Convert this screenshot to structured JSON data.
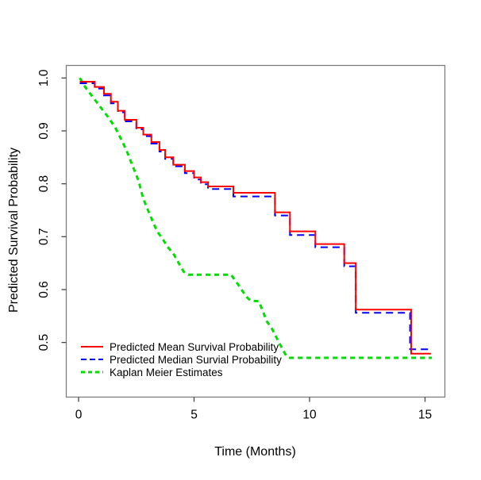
{
  "figure": {
    "background": "#ffffff",
    "box_color": "#7d7d7d",
    "tick_color": "#454545",
    "text_color": "#000000"
  },
  "chart_data": {
    "type": "line",
    "title": "",
    "xlabel": "Time (Months)",
    "ylabel": "Predicted Survival Probability",
    "xlim": [
      -0.55,
      15.85
    ],
    "ylim": [
      0.397,
      1.024
    ],
    "grid": false,
    "x_ticks": {
      "values": [
        0,
        5,
        10,
        15
      ],
      "labels": [
        "0",
        "5",
        "10",
        "15"
      ]
    },
    "y_ticks": {
      "values": [
        1.0,
        0.9,
        0.8,
        0.7,
        0.6,
        0.5
      ],
      "labels": [
        "1.0",
        "0.9",
        "0.8",
        "0.7",
        "0.6",
        "0.5"
      ]
    },
    "legend": {
      "position": "bottom-left-inside"
    },
    "series": [
      {
        "id": "kaplan-meier-line",
        "name": "Kaplan Meier Estimates",
        "color": "#00dd00",
        "line_style": "dashed",
        "dash": "6 5",
        "width": 3,
        "curve": "linear",
        "points": [
          [
            0.05,
            1.0
          ],
          [
            0.3,
            0.982
          ],
          [
            0.65,
            0.962
          ],
          [
            0.95,
            0.945
          ],
          [
            1.3,
            0.925
          ],
          [
            1.6,
            0.905
          ],
          [
            1.8,
            0.888
          ],
          [
            2.0,
            0.87
          ],
          [
            2.15,
            0.855
          ],
          [
            2.3,
            0.838
          ],
          [
            2.45,
            0.822
          ],
          [
            2.6,
            0.805
          ],
          [
            2.7,
            0.788
          ],
          [
            2.8,
            0.772
          ],
          [
            2.95,
            0.756
          ],
          [
            3.1,
            0.74
          ],
          [
            3.25,
            0.725
          ],
          [
            3.4,
            0.71
          ],
          [
            3.65,
            0.695
          ],
          [
            3.85,
            0.681
          ],
          [
            4.1,
            0.668
          ],
          [
            4.25,
            0.657
          ],
          [
            4.4,
            0.645
          ],
          [
            4.55,
            0.634
          ],
          [
            4.75,
            0.628
          ],
          [
            6.6,
            0.628
          ],
          [
            6.9,
            0.61
          ],
          [
            7.1,
            0.597
          ],
          [
            7.3,
            0.585
          ],
          [
            7.45,
            0.579
          ],
          [
            7.8,
            0.578
          ],
          [
            7.95,
            0.562
          ],
          [
            8.15,
            0.54
          ],
          [
            8.4,
            0.524
          ],
          [
            8.65,
            0.502
          ],
          [
            8.85,
            0.486
          ],
          [
            9.0,
            0.474
          ],
          [
            9.15,
            0.471
          ],
          [
            15.3,
            0.471
          ]
        ]
      },
      {
        "id": "median-survival-line",
        "name": "Predicted Median Survial Probability",
        "color": "#0000ff",
        "line_style": "dashed",
        "dash": "9 6",
        "width": 2,
        "curve": "step",
        "points": [
          [
            0.05,
            0.99
          ],
          [
            0.7,
            0.98
          ],
          [
            1.1,
            0.967
          ],
          [
            1.4,
            0.952
          ],
          [
            1.7,
            0.935
          ],
          [
            2.0,
            0.918
          ],
          [
            2.5,
            0.903
          ],
          [
            2.8,
            0.89
          ],
          [
            3.15,
            0.876
          ],
          [
            3.5,
            0.861
          ],
          [
            3.75,
            0.847
          ],
          [
            4.1,
            0.833
          ],
          [
            4.6,
            0.82
          ],
          [
            5.0,
            0.808
          ],
          [
            5.3,
            0.799
          ],
          [
            5.6,
            0.79
          ],
          [
            6.7,
            0.776
          ],
          [
            8.5,
            0.74
          ],
          [
            9.15,
            0.703
          ],
          [
            10.25,
            0.68
          ],
          [
            11.5,
            0.644
          ],
          [
            12.0,
            0.556
          ],
          [
            14.35,
            0.487
          ],
          [
            15.3,
            0.487
          ]
        ]
      },
      {
        "id": "mean-survival-line",
        "name": "Predicted Mean Survival Probability",
        "color": "#ff0000",
        "line_style": "solid",
        "dash": "",
        "width": 2,
        "curve": "step",
        "points": [
          [
            0.05,
            0.993
          ],
          [
            0.7,
            0.983
          ],
          [
            1.1,
            0.97
          ],
          [
            1.4,
            0.955
          ],
          [
            1.7,
            0.938
          ],
          [
            2.0,
            0.921
          ],
          [
            2.5,
            0.906
          ],
          [
            2.8,
            0.893
          ],
          [
            3.15,
            0.879
          ],
          [
            3.5,
            0.864
          ],
          [
            3.75,
            0.85
          ],
          [
            4.1,
            0.836
          ],
          [
            4.6,
            0.824
          ],
          [
            5.0,
            0.812
          ],
          [
            5.3,
            0.803
          ],
          [
            5.6,
            0.795
          ],
          [
            6.7,
            0.783
          ],
          [
            8.5,
            0.746
          ],
          [
            9.15,
            0.71
          ],
          [
            10.25,
            0.686
          ],
          [
            11.5,
            0.65
          ],
          [
            12.0,
            0.562
          ],
          [
            14.4,
            0.479
          ],
          [
            15.25,
            0.479
          ]
        ]
      }
    ],
    "legend_order": [
      2,
      1,
      0
    ]
  }
}
